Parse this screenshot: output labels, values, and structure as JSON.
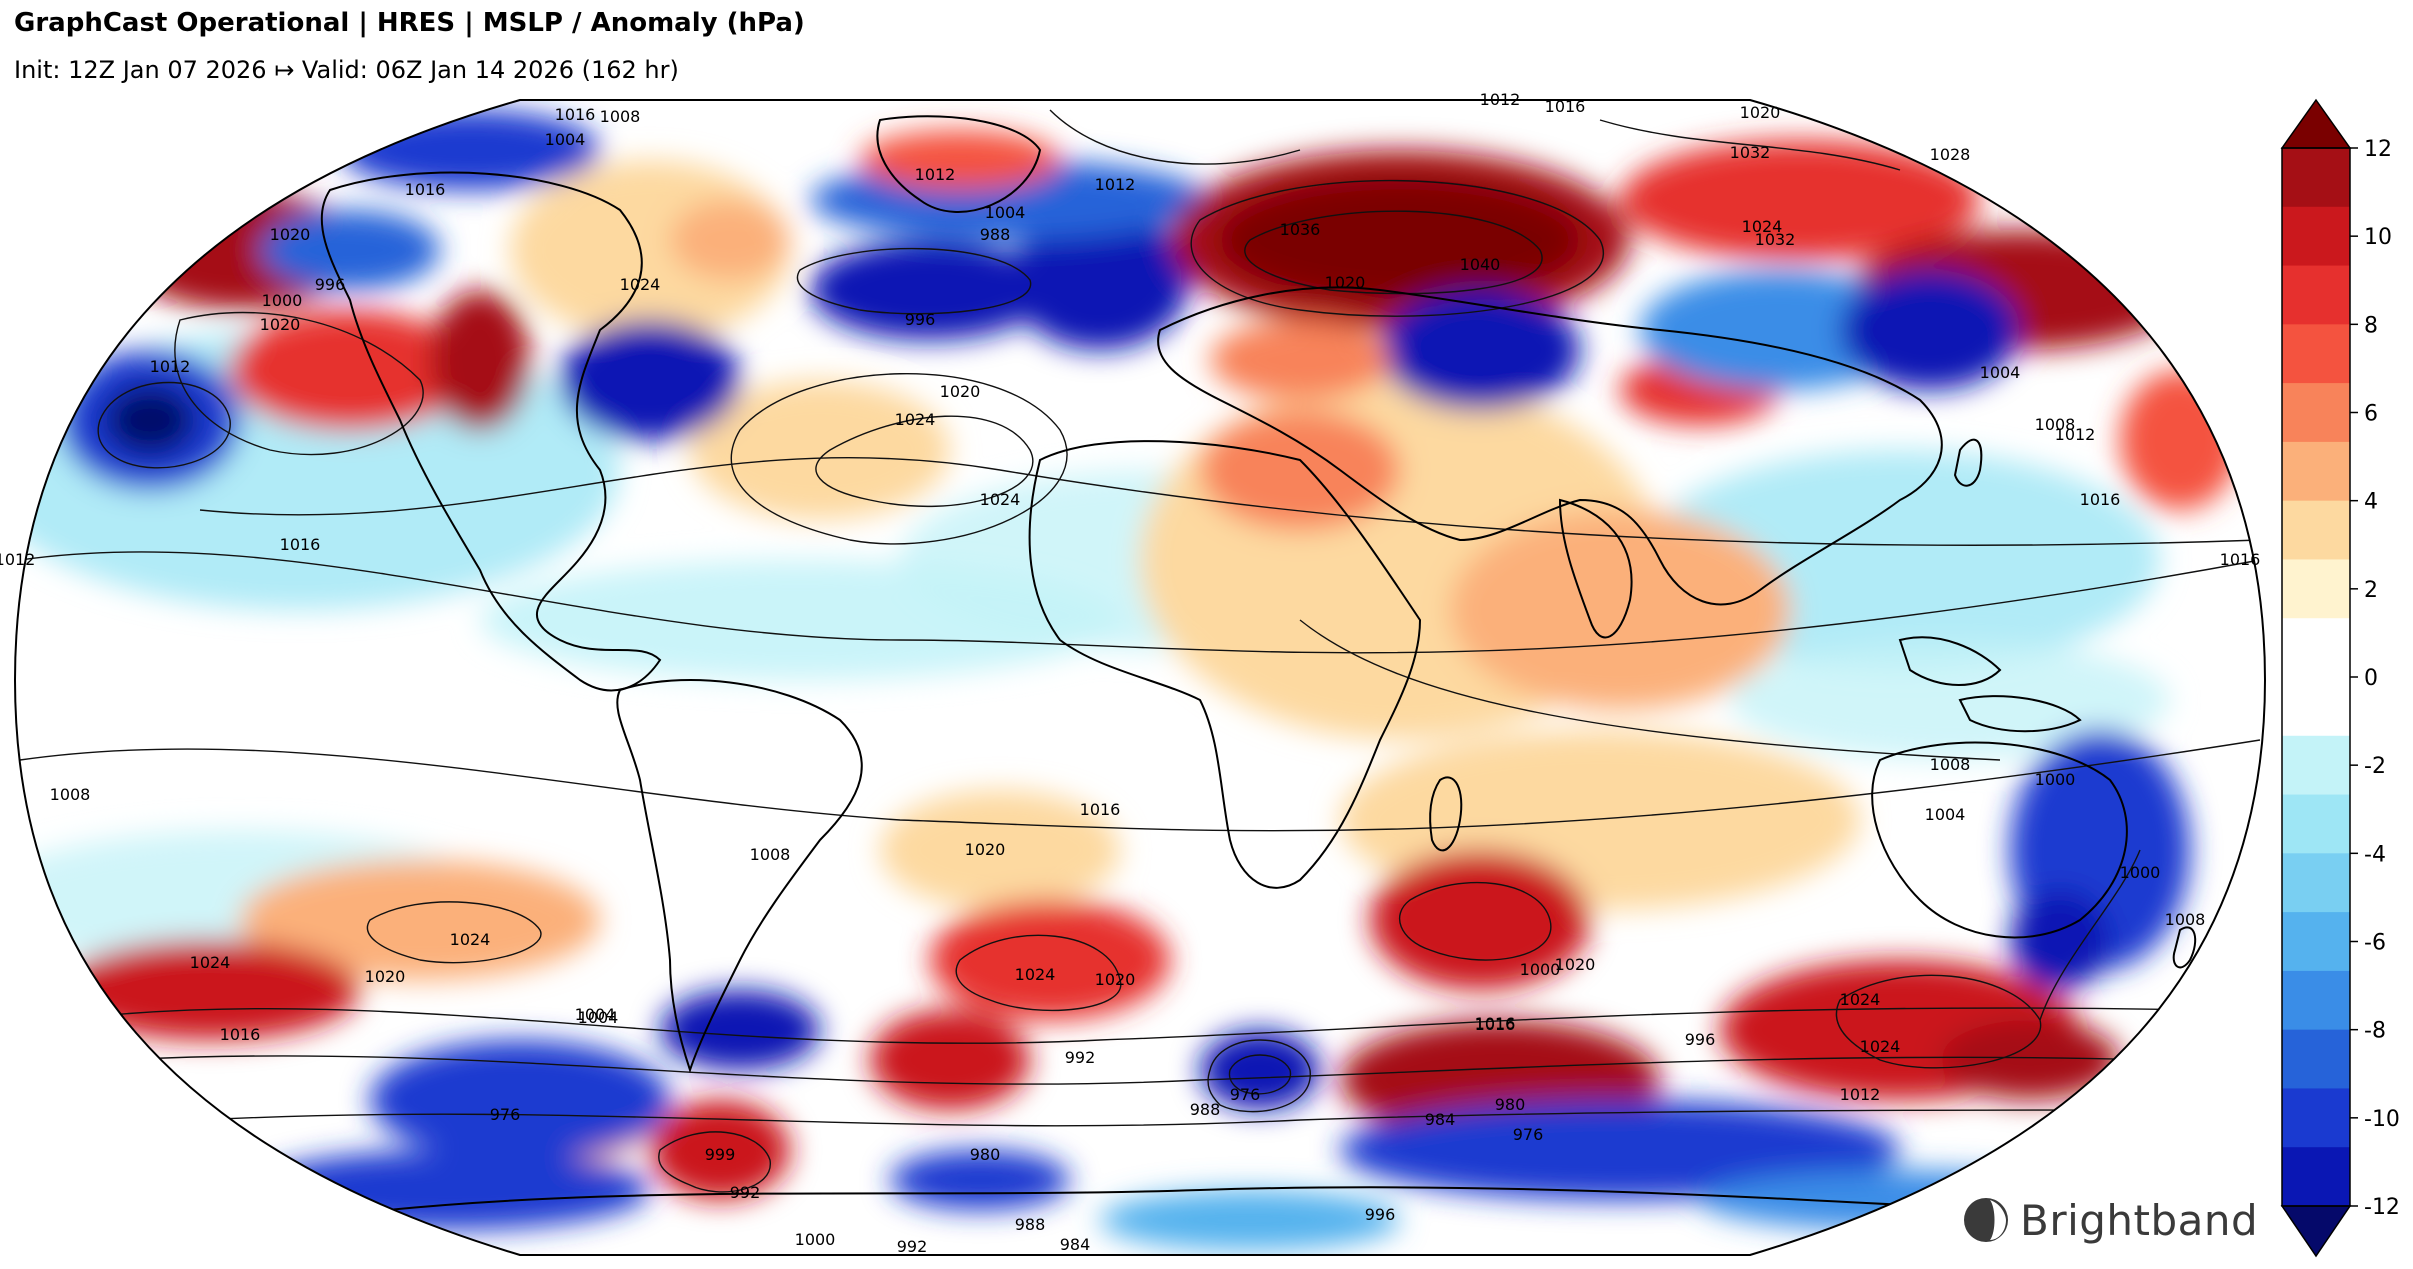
{
  "header": {
    "title": "GraphCast Operational | HRES | MSLP / Anomaly (hPa)",
    "subtitle": "Init: 12Z Jan 07 2026 ↦ Valid: 06Z Jan 14 2026 (162 hr)"
  },
  "colorbar": {
    "ticks": [
      "12",
      "10",
      "8",
      "6",
      "4",
      "2",
      "0",
      "-2",
      "-4",
      "-6",
      "-8",
      "-10",
      "-12"
    ],
    "colors": [
      "#a50f15",
      "#cb181d",
      "#e6302e",
      "#f4533f",
      "#f8835a",
      "#fbb07a",
      "#fdd9a0",
      "#fff3cf",
      "#ffffff",
      "#ffffff",
      "#c4f3f8",
      "#9ee6f5",
      "#79cff2",
      "#55b2ee",
      "#3a8de7",
      "#2663d9",
      "#1a3ad0",
      "#0a17b4"
    ],
    "over_color": "#7a0000",
    "under_color": "#05096a"
  },
  "contour_labels": [
    {
      "text": "1008"
    },
    {
      "text": "1004"
    },
    {
      "text": "1016"
    },
    {
      "text": "1020"
    },
    {
      "text": "1024"
    },
    {
      "text": "1012"
    },
    {
      "text": "1016"
    },
    {
      "text": "1000"
    },
    {
      "text": "996"
    },
    {
      "text": "1020"
    },
    {
      "text": "1024"
    },
    {
      "text": "1016"
    },
    {
      "text": "1012"
    },
    {
      "text": "1012"
    },
    {
      "text": "1004"
    },
    {
      "text": "988"
    },
    {
      "text": "996"
    },
    {
      "text": "1024"
    },
    {
      "text": "1020"
    },
    {
      "text": "1040"
    },
    {
      "text": "1036"
    },
    {
      "text": "1020"
    },
    {
      "text": "1012"
    },
    {
      "text": "1016"
    },
    {
      "text": "1020"
    },
    {
      "text": "1032"
    },
    {
      "text": "1028"
    },
    {
      "text": "1024"
    },
    {
      "text": "1032"
    },
    {
      "text": "1004"
    },
    {
      "text": "1008"
    },
    {
      "text": "1012"
    },
    {
      "text": "1016"
    },
    {
      "text": "1012"
    },
    {
      "text": "1016"
    },
    {
      "text": "1008"
    },
    {
      "text": "1008"
    },
    {
      "text": "1016"
    },
    {
      "text": "1020"
    },
    {
      "text": "1024"
    },
    {
      "text": "1024"
    },
    {
      "text": "1020"
    },
    {
      "text": "1024"
    },
    {
      "text": "1020"
    },
    {
      "text": "1016"
    },
    {
      "text": "1004"
    },
    {
      "text": "1000"
    },
    {
      "text": "988"
    },
    {
      "text": "976"
    },
    {
      "text": "984"
    },
    {
      "text": "980"
    },
    {
      "text": "976"
    },
    {
      "text": "996"
    },
    {
      "text": "1024"
    },
    {
      "text": "1020"
    },
    {
      "text": "1016"
    },
    {
      "text": "1024"
    },
    {
      "text": "1012"
    },
    {
      "text": "992"
    },
    {
      "text": "1000"
    },
    {
      "text": "1008"
    },
    {
      "text": "1016"
    },
    {
      "text": "999"
    },
    {
      "text": "992"
    },
    {
      "text": "980"
    },
    {
      "text": "984"
    },
    {
      "text": "988"
    },
    {
      "text": "996"
    },
    {
      "text": "992"
    },
    {
      "text": "1000"
    },
    {
      "text": "1008"
    },
    {
      "text": "1004"
    },
    {
      "text": "1000"
    },
    {
      "text": "976"
    },
    {
      "text": "1004"
    }
  ],
  "brand": {
    "logo_text": "Brightband"
  }
}
